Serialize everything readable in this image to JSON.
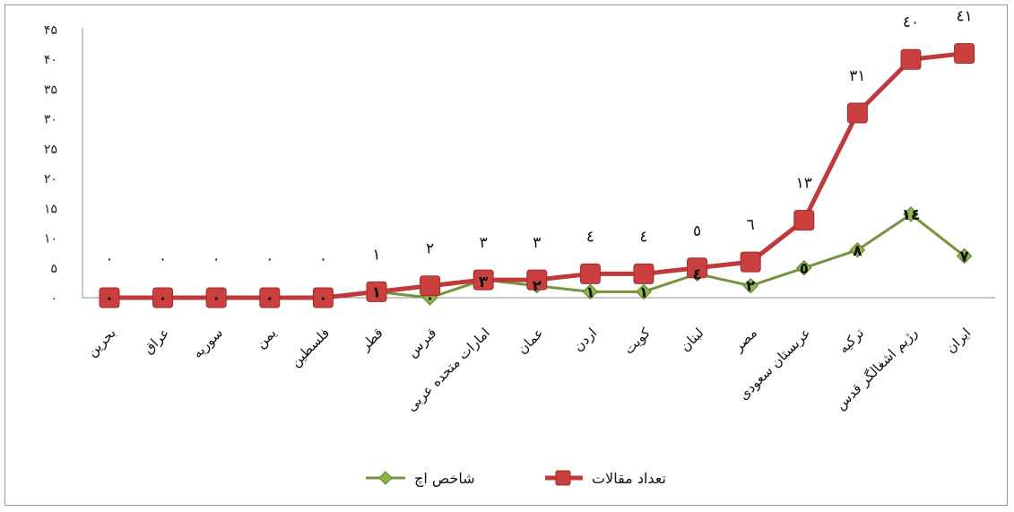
{
  "chart_data": {
    "type": "line",
    "title": "",
    "xlabel": "",
    "ylabel": "",
    "ylim": [
      0,
      45
    ],
    "yticks": [
      0,
      5,
      10,
      15,
      20,
      25,
      30,
      35,
      40,
      45
    ],
    "ytick_labels": [
      "٠",
      "۵",
      "١٠",
      "١۵",
      "٢٠",
      "٢۵",
      "٣٠",
      "٣۵",
      "۴٠",
      "۴۵"
    ],
    "grid": false,
    "legend_position": "bottom",
    "categories": [
      "بحرین",
      "عراق",
      "سوریه",
      "یمن",
      "فلسطین",
      "قطر",
      "قبرس",
      "امارات متحده عربی",
      "عمان",
      "اردن",
      "کویت",
      "لبنان",
      "مصر",
      "عربستان سعودی",
      "ترکیه",
      "رژیم اشغالگر قدس",
      "ایران"
    ],
    "series": [
      {
        "name": "تعداد مقالات",
        "color": "#c0393b",
        "marker": "square",
        "values": [
          0,
          0,
          0,
          0,
          0,
          1,
          2,
          3,
          3,
          4,
          4,
          5,
          6,
          13,
          31,
          40,
          41
        ],
        "labels": [
          "٠",
          "٠",
          "٠",
          "٠",
          "٠",
          "١",
          "٢",
          "٣",
          "٣",
          "٤",
          "٤",
          "٥",
          "٦",
          "١٣",
          "٣١",
          "٤٠",
          "٤١"
        ]
      },
      {
        "name": "شاخص اچ",
        "color": "#77933c",
        "marker": "diamond",
        "values": [
          0,
          0,
          0,
          0,
          0,
          1,
          0,
          3,
          2,
          1,
          1,
          4,
          2,
          5,
          8,
          14,
          7
        ],
        "labels": [
          "٠",
          "٠",
          "٠",
          "٠",
          "٠",
          "١",
          "٠",
          "٣",
          "٢",
          "١",
          "١",
          "٤",
          "٢",
          "٥",
          "٨",
          "١٤",
          "٧"
        ]
      }
    ]
  }
}
